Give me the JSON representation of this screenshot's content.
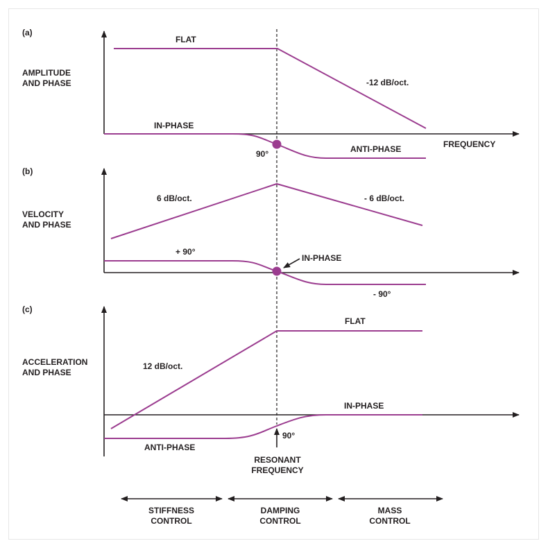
{
  "panels": {
    "a": {
      "letter": "(a)",
      "ylabel_line1": "AMPLITUDE",
      "ylabel_line2": "AND PHASE",
      "flat": "FLAT",
      "slope": "-12 dB/oct.",
      "in_phase": "IN-PHASE",
      "anti_phase": "ANTI-PHASE",
      "ninety": "90°",
      "xlabel": "FREQUENCY"
    },
    "b": {
      "letter": "(b)",
      "ylabel_line1": "VELOCITY",
      "ylabel_line2": "AND PHASE",
      "rise": "6 dB/oct.",
      "fall": "- 6 dB/oct.",
      "plus90": "+ 90°",
      "in_phase": "IN-PHASE",
      "minus90": "- 90°"
    },
    "c": {
      "letter": "(c)",
      "ylabel_line1": "ACCELERATION",
      "ylabel_line2": "AND PHASE",
      "rise": "12 dB/oct.",
      "flat": "FLAT",
      "in_phase": "IN-PHASE",
      "anti_phase": "ANTI-PHASE",
      "ninety": "90°"
    }
  },
  "resonant_line1": "RESONANT",
  "resonant_line2": "FREQUENCY",
  "regions": [
    {
      "line1": "STIFFNESS",
      "line2": "CONTROL"
    },
    {
      "line1": "DAMPING",
      "line2": "CONTROL"
    },
    {
      "line1": "MASS",
      "line2": "CONTROL"
    }
  ],
  "colors": {
    "curve": "#9b3c8f",
    "axis": "#231f20"
  }
}
